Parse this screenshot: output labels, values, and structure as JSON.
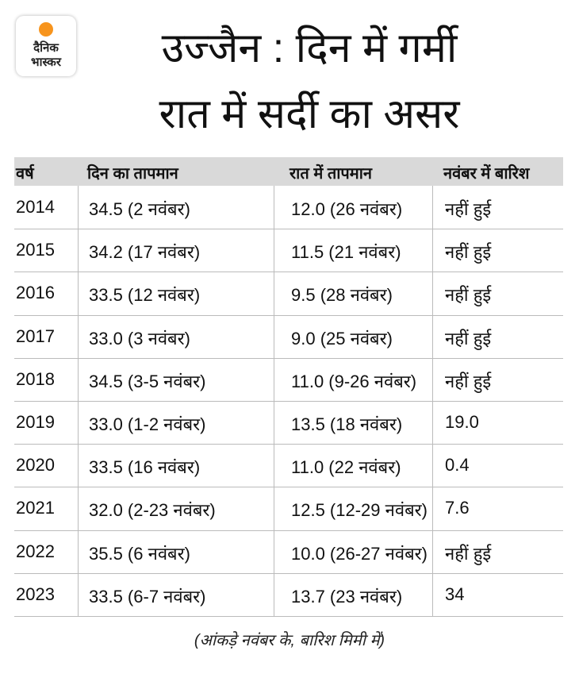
{
  "logo": {
    "lines": [
      "दैनिक",
      "भास्कर"
    ]
  },
  "header": {
    "title_lines": [
      "उज्जैन : दिन में गर्मी",
      "रात में सर्दी का असर"
    ]
  },
  "table": {
    "columns": [
      "वर्ष",
      "दिन का तापमान",
      "रात में तापमान",
      "नवंबर में बारिश"
    ],
    "rows": [
      [
        "2014",
        "34.5 (2 नवंबर)",
        "12.0 (26 नवंबर)",
        "नहीं हुई"
      ],
      [
        "2015",
        "34.2 (17 नवंबर)",
        "11.5 (21 नवंबर)",
        "नहीं हुई"
      ],
      [
        "2016",
        "33.5 (12 नवंबर)",
        "9.5 (28 नवंबर)",
        "नहीं हुई"
      ],
      [
        "2017",
        "33.0 (3 नवंबर)",
        "9.0 (25 नवंबर)",
        "नहीं हुई"
      ],
      [
        "2018",
        "34.5 (3-5 नवंबर)",
        "11.0 (9-26 नवंबर)",
        "नहीं हुई"
      ],
      [
        "2019",
        "33.0 (1-2 नवंबर)",
        "13.5 (18 नवंबर)",
        "19.0"
      ],
      [
        "2020",
        "33.5 (16 नवंबर)",
        "11.0 (22 नवंबर)",
        "0.4"
      ],
      [
        "2021",
        "32.0 (2-23 नवंबर)",
        "12.5 (12-29 नवंबर)",
        "7.6"
      ],
      [
        "2022",
        "35.5 (6 नवंबर)",
        "10.0 (26-27 नवंबर)",
        "नहीं हुई"
      ],
      [
        "2023",
        "33.5 (6-7 नवंबर)",
        "13.7 (23 नवंबर)",
        "34"
      ]
    ]
  },
  "footnote": "(आंकड़े नवंबर के, बारिश मिमी में)"
}
